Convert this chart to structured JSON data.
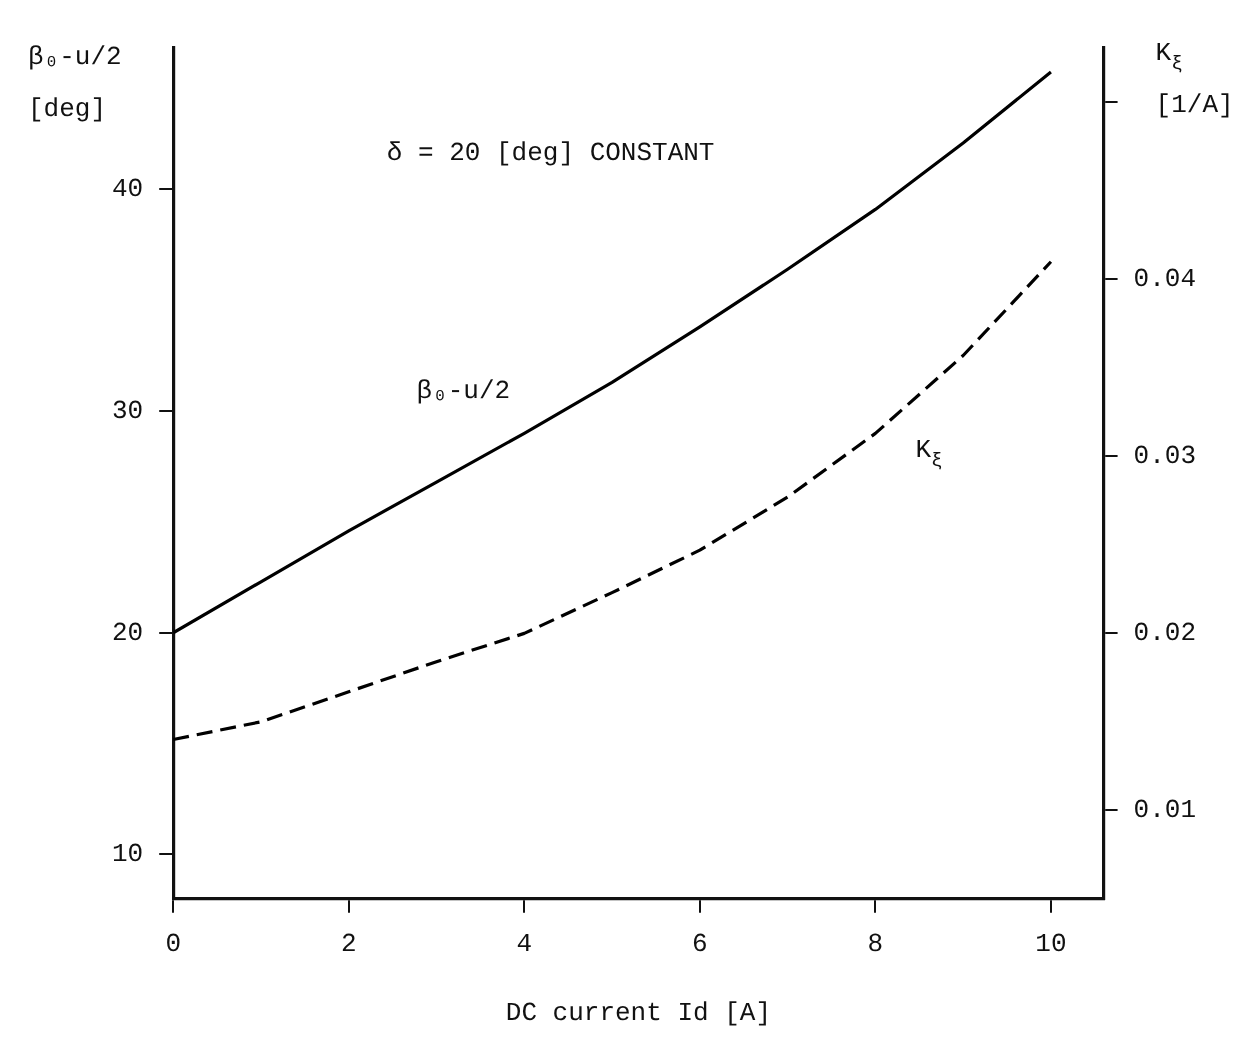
{
  "chart_data": {
    "type": "line",
    "xlabel": "DC current Id [A]",
    "ylabel": "β₀-u/2 [deg]",
    "y2label": "K$_{ξ}$ [1/A]",
    "annotations": [
      "δ = 20 [deg] CONSTANT"
    ],
    "x": [
      0,
      1,
      2,
      3,
      4,
      5,
      6,
      7,
      8,
      9,
      10
    ],
    "series": [
      {
        "name": "β₀-u/2",
        "color": "#000000",
        "line_style": "solid",
        "values": [
          20,
          22.3,
          24.6,
          26.8,
          29.0,
          31.3,
          33.8,
          36.4,
          39.1,
          42.1,
          45.3
        ]
      },
      {
        "name": "K$_{ξ}$",
        "color": "#000000",
        "line_style": "dashed",
        "axis": "y2",
        "values": [
          0.014,
          0.015,
          0.0167,
          0.0184,
          0.02,
          0.0223,
          0.0247,
          0.0277,
          0.0313,
          0.0357,
          0.041
        ]
      }
    ],
    "xlim": [
      0,
      10.6
    ],
    "xticks": [
      0,
      2,
      4,
      6,
      8,
      10
    ],
    "ylim": [
      8,
      46.4
    ],
    "yticks": [
      10,
      20,
      30,
      40
    ],
    "y2lim": [
      0.005,
      0.0531
    ],
    "y2ticks": [
      0.01,
      0.02,
      0.03,
      0.04,
      {
        "value": 0.05,
        "label": null
      }
    ],
    "grid": false,
    "legend": false,
    "marker": "none"
  }
}
